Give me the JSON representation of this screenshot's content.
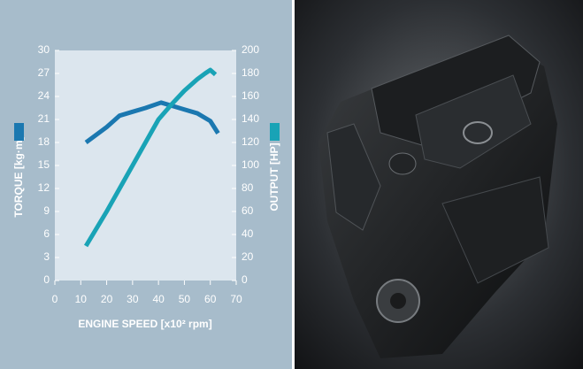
{
  "chart_data": {
    "type": "line",
    "xlabel": "ENGINE SPEED [x10² rpm]",
    "ylabel": "TORQUE [kg·m]",
    "y2label": "OUTPUT [HP]",
    "xlim": [
      0,
      70
    ],
    "xticks": [
      0,
      10,
      20,
      30,
      40,
      50,
      60,
      70
    ],
    "ylim": [
      0,
      30
    ],
    "yticks": [
      0,
      3,
      6,
      9,
      12,
      15,
      18,
      21,
      24,
      27,
      30
    ],
    "y2lim": [
      0,
      200
    ],
    "y2ticks": [
      0,
      20,
      40,
      60,
      80,
      100,
      120,
      140,
      160,
      180,
      200
    ],
    "series": [
      {
        "name": "TORQUE",
        "color": "#1b78b0",
        "axis": "y",
        "x": [
          12,
          20,
          25,
          30,
          35,
          41,
          45,
          50,
          55,
          60,
          63
        ],
        "values": [
          18,
          20,
          21.5,
          22,
          22.5,
          23.2,
          22.8,
          22.3,
          21.8,
          20.8,
          19.2
        ]
      },
      {
        "name": "OUTPUT",
        "color": "#19a3b6",
        "axis": "y2",
        "x": [
          12,
          20,
          25,
          30,
          35,
          40,
          45,
          50,
          55,
          58,
          60,
          62
        ],
        "values": [
          30,
          60,
          80,
          100,
          120,
          140,
          153,
          165,
          175,
          180,
          183,
          179
        ]
      }
    ]
  }
}
